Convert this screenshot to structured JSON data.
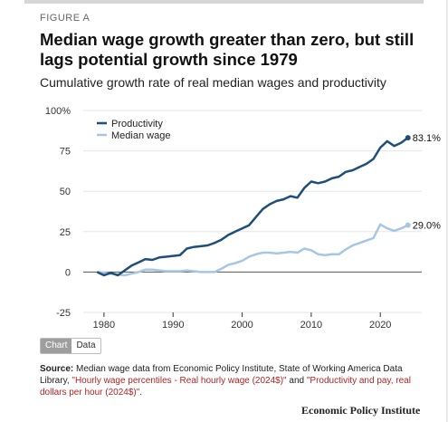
{
  "figure_label": "FIGURE A",
  "title": "Median wage growth greater than zero, but still lags potential growth since 1979",
  "subtitle": "Cumulative growth rate of real median wages and productivity",
  "tabs": {
    "chart": "Chart",
    "data": "Data"
  },
  "source": {
    "prefix": "Source:",
    "text": " Median wage data from Economic Policy Institute, State of Working America Data Library, ",
    "link1": "\"Hourly wage percentiles - Real hourly wage (2024$)\"",
    "mid": " and ",
    "link2": "\"Productivity and pay, real dollars per hour (2024$)\"",
    "end": "."
  },
  "logo": "Economic Policy Institute",
  "colors": {
    "productivity": "#1f4e79",
    "median_wage": "#a6c6e4",
    "zero_line": "#555555",
    "grid": "#e6e6e6",
    "link": "#b22222"
  },
  "chart_data": {
    "type": "line",
    "xlim": [
      1977,
      2026
    ],
    "ylim": [
      -25,
      100
    ],
    "x_ticks": [
      1980,
      1990,
      2000,
      2010,
      2020
    ],
    "y_ticks": [
      100,
      75,
      50,
      25,
      0,
      -25
    ],
    "y_tick_labels": [
      "100%",
      "75",
      "50",
      "25",
      "0",
      "-25"
    ],
    "grid": "horizontal",
    "legend": "top-left",
    "series": [
      {
        "name": "Productivity",
        "end_label": "83.1%",
        "x": [
          1979,
          1980,
          1981,
          1982,
          1983,
          1984,
          1985,
          1986,
          1987,
          1988,
          1989,
          1990,
          1991,
          1992,
          1993,
          1994,
          1995,
          1996,
          1997,
          1998,
          1999,
          2000,
          2001,
          2002,
          2003,
          2004,
          2005,
          2006,
          2007,
          2008,
          2009,
          2010,
          2011,
          2012,
          2013,
          2014,
          2015,
          2016,
          2017,
          2018,
          2019,
          2020,
          2021,
          2022,
          2023,
          2024
        ],
        "values": [
          0,
          -2,
          -0.5,
          -2,
          1,
          4,
          6,
          8,
          7.5,
          9,
          9.5,
          10,
          10.5,
          14.5,
          15.5,
          16,
          16.5,
          18,
          20,
          23,
          25,
          27,
          29,
          34,
          39,
          42,
          44,
          45,
          47,
          46,
          52,
          56,
          55,
          56,
          58,
          59,
          62,
          63,
          65,
          67,
          70,
          77,
          81,
          78,
          80,
          83.1
        ]
      },
      {
        "name": "Median wage",
        "end_label": "29.0%",
        "x": [
          1979,
          1980,
          1981,
          1982,
          1983,
          1984,
          1985,
          1986,
          1987,
          1988,
          1989,
          1990,
          1991,
          1992,
          1993,
          1994,
          1995,
          1996,
          1997,
          1998,
          1999,
          2000,
          2001,
          2002,
          2003,
          2004,
          2005,
          2006,
          2007,
          2008,
          2009,
          2010,
          2011,
          2012,
          2013,
          2014,
          2015,
          2016,
          2017,
          2018,
          2019,
          2020,
          2021,
          2022,
          2023,
          2024
        ],
        "values": [
          0,
          -0.5,
          -1,
          -1.5,
          -2,
          -1,
          0,
          1.5,
          1.5,
          1,
          0.5,
          0.5,
          0.5,
          1,
          0.5,
          0,
          0,
          0,
          2,
          4.5,
          5.5,
          7,
          9.5,
          11,
          12,
          12,
          11.5,
          12,
          12.5,
          12,
          14.5,
          13.5,
          11,
          10.5,
          11,
          11,
          14,
          16.5,
          18,
          19.5,
          21,
          29.5,
          27,
          25.5,
          27,
          29.0
        ]
      }
    ]
  }
}
